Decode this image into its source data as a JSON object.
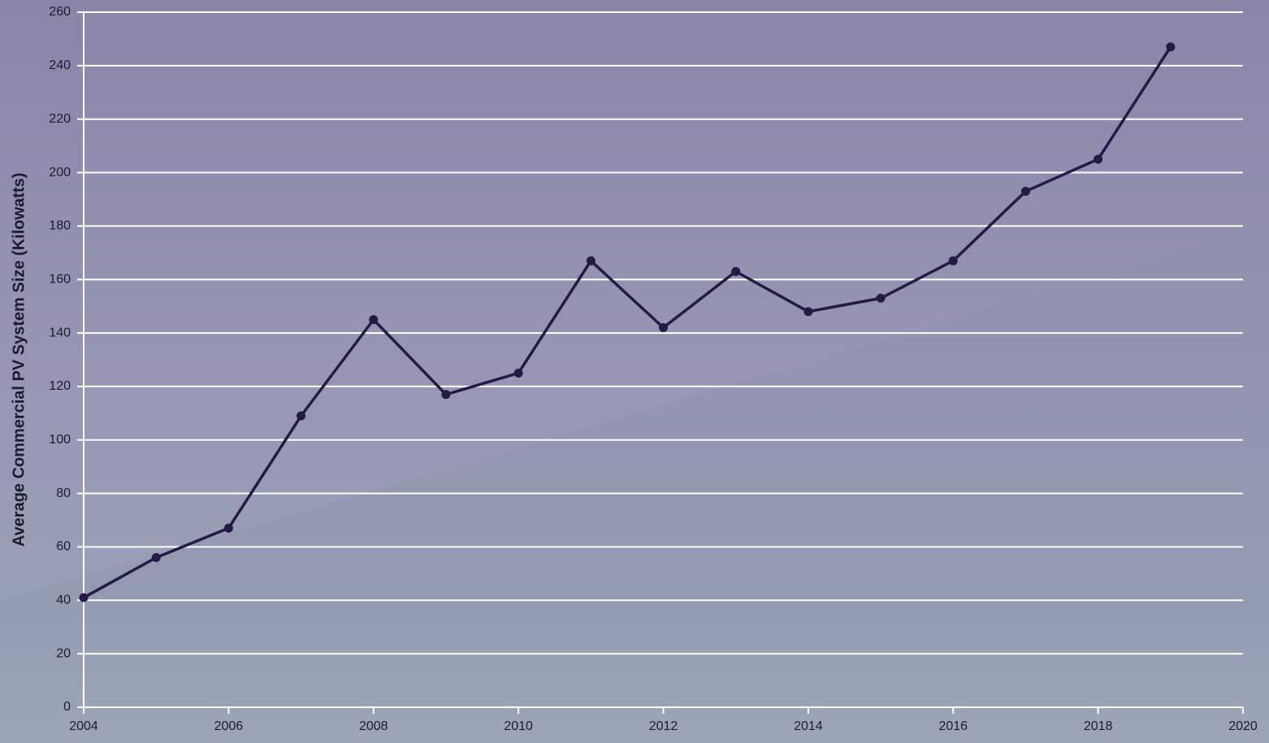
{
  "chart_data": {
    "type": "line",
    "y_label": "Average Commercial PV System Size (Kilowatts)",
    "x": [
      2004,
      2005,
      2006,
      2007,
      2008,
      2009,
      2010,
      2011,
      2012,
      2013,
      2014,
      2015,
      2016,
      2017,
      2018,
      2019
    ],
    "series": [
      {
        "color": "#231a45",
        "values": [
          41,
          56,
          67,
          109,
          145,
          117,
          125,
          167,
          142,
          163,
          148,
          153,
          167,
          193,
          205,
          247
        ]
      }
    ],
    "xlim": [
      2004,
      2020
    ],
    "xticks": [
      2004,
      2006,
      2008,
      2010,
      2012,
      2014,
      2016,
      2018,
      2020
    ],
    "ylim": [
      0,
      260
    ],
    "yticks": [
      0,
      20,
      40,
      60,
      80,
      100,
      120,
      140,
      160,
      180,
      200,
      220,
      240,
      260
    ],
    "grid": true
  }
}
